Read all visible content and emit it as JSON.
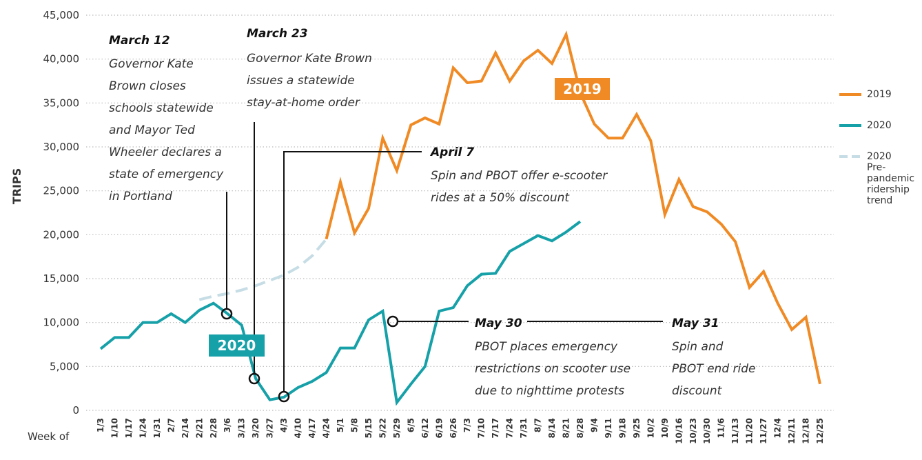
{
  "chart_data": {
    "type": "line",
    "y_label": "TRIPS",
    "x_label": "Week of",
    "categories": [
      "1/3",
      "1/10",
      "1/17",
      "1/24",
      "1/31",
      "2/7",
      "2/14",
      "2/21",
      "2/28",
      "3/6",
      "3/13",
      "3/20",
      "3/27",
      "4/3",
      "4/10",
      "4/17",
      "4/24",
      "5/1",
      "5/8",
      "5/15",
      "5/22",
      "5/29",
      "6/5",
      "6/12",
      "6/19",
      "6/26",
      "7/3",
      "7/10",
      "7/17",
      "7/24",
      "7/31",
      "8/7",
      "8/14",
      "8/21",
      "8/28",
      "9/4",
      "9/11",
      "9/18",
      "9/25",
      "10/2",
      "10/9",
      "10/16",
      "10/23",
      "10/30",
      "11/6",
      "11/13",
      "11/20",
      "11/27",
      "12/4",
      "12/11",
      "12/18",
      "12/25"
    ],
    "series": [
      {
        "name": "2019",
        "color": "#f08a24",
        "values": [
          null,
          null,
          null,
          null,
          null,
          null,
          null,
          null,
          null,
          null,
          null,
          null,
          null,
          null,
          null,
          null,
          19500,
          26000,
          20200,
          23000,
          31000,
          27300,
          32500,
          33300,
          32600,
          39000,
          37300,
          37500,
          40700,
          37500,
          39800,
          41000,
          39500,
          42800,
          36200,
          32600,
          31000,
          31000,
          33700,
          30700,
          22300,
          26300,
          23200,
          22600,
          21200,
          19200,
          14000,
          15800,
          12200,
          9200,
          10600,
          3000
        ]
      },
      {
        "name": "2020",
        "color": "#16a0a8",
        "values": [
          7000,
          8300,
          8300,
          10000,
          10000,
          11000,
          10000,
          11400,
          12200,
          11000,
          9700,
          3600,
          1200,
          1500,
          2600,
          3300,
          4300,
          7100,
          7100,
          10300,
          11300,
          900,
          3000,
          5000,
          11300,
          11700,
          14200,
          15500,
          15600,
          18100,
          19000,
          19900,
          19300,
          20300,
          21500,
          null,
          null,
          null,
          null,
          null,
          null,
          null,
          null,
          null,
          null,
          null,
          null,
          null,
          null,
          null,
          null,
          null
        ]
      },
      {
        "name": "2020 Pre-pandemic ridership trend",
        "color": "#c6dde5",
        "dashed": true,
        "values": [
          null,
          null,
          null,
          null,
          null,
          null,
          null,
          12600,
          13000,
          13300,
          13700,
          14200,
          14800,
          15400,
          16300,
          17600,
          19500,
          null,
          null,
          null,
          null,
          null,
          null,
          null,
          null,
          null,
          null,
          null,
          null,
          null,
          null,
          null,
          null,
          null,
          null,
          null,
          null,
          null,
          null,
          null,
          null,
          null,
          null,
          null,
          null,
          null,
          null,
          null,
          null,
          null,
          null,
          null
        ]
      }
    ],
    "ylim": [
      0,
      45000
    ],
    "yticks": [
      0,
      {
        "value": 5000,
        "label": "5,000"
      },
      {
        "value": 10000,
        "label": "10,000"
      },
      {
        "value": 15000,
        "label": "15,000"
      },
      {
        "value": 20000,
        "label": "20,000"
      },
      {
        "value": 25000,
        "label": "25,000"
      },
      {
        "value": 30000,
        "label": "30,000"
      },
      {
        "value": 35000,
        "label": "35,000"
      },
      {
        "value": 40000,
        "label": "40,000"
      },
      {
        "value": 45000,
        "label": "45,000"
      }
    ],
    "grid": true,
    "legend": "right",
    "annotations": [
      {
        "title": "March 12",
        "lines": [
          "Governor Kate",
          "Brown closes",
          "schools statewide",
          "and Mayor Ted",
          "Wheeler declares a",
          "state of emergency",
          "in Portland"
        ]
      },
      {
        "title": "March 23",
        "lines": [
          "Governor Kate Brown",
          "issues a statewide",
          "stay-at-home order"
        ]
      },
      {
        "title": "April 7",
        "lines": [
          "Spin and PBOT offer e-scooter",
          "rides at a 50% discount"
        ]
      },
      {
        "title": "May 30",
        "lines": [
          "PBOT places emergency",
          "restrictions on scooter use",
          "due to nighttime protests"
        ]
      },
      {
        "title": "May 31",
        "lines": [
          "Spin and",
          "PBOT end ride",
          "discount"
        ]
      }
    ]
  }
}
